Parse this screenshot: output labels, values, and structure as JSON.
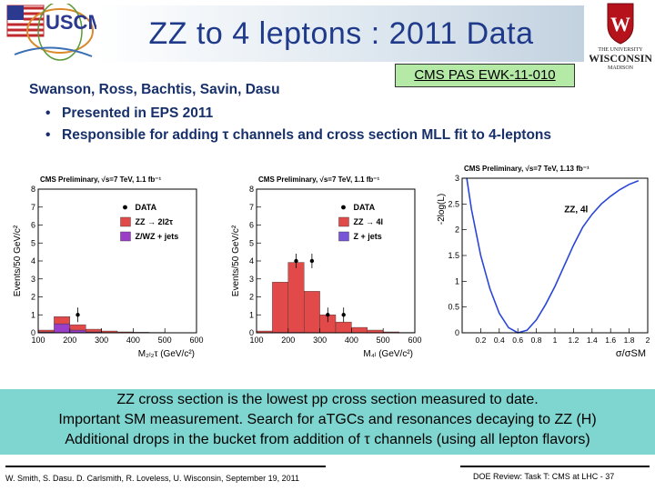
{
  "header": {
    "title": "ZZ to 4 leptons : 2011 Data",
    "pas_ref": "CMS PAS EWK-11-010",
    "logo_left": "USCMS",
    "logo_right_top": "THE UNIVERSITY",
    "logo_right_main": "WISCONSIN",
    "logo_right_bottom": "MADISON"
  },
  "content": {
    "authors": "Swanson, Ross, Bachtis, Savin, Dasu",
    "bullets": [
      "Presented in EPS 2011",
      "Responsible for adding τ channels and cross section MLL fit to 4-leptons"
    ]
  },
  "chart_data": [
    {
      "type": "bar",
      "title": "CMS Preliminary, √s=7 TeV, 1.1 fb⁻¹",
      "xlabel": "M₂ₗ₂τ (GeV/c²)",
      "ylabel": "Events/50 GeV/c²",
      "xlim": [
        100,
        600
      ],
      "ylim": [
        0,
        8
      ],
      "x_ticks": [
        "100",
        "200",
        "300",
        "400",
        "500",
        "600"
      ],
      "y_ticks": [
        "0",
        "1",
        "2",
        "3",
        "4",
        "5",
        "6",
        "7",
        "8"
      ],
      "legend": [
        "DATA",
        "ZZ → 2l2τ",
        "Z/WZ + jets"
      ],
      "legend_placement": "top-right",
      "bin_edges": [
        100,
        150,
        200,
        250,
        300,
        350,
        400,
        450,
        500,
        550,
        600
      ],
      "series": [
        {
          "name": "Z/WZ + jets",
          "values": [
            0.05,
            0.5,
            0.15,
            0.05,
            0.02,
            0,
            0,
            0,
            0,
            0
          ]
        },
        {
          "name": "ZZ → 2l2τ",
          "values": [
            0.1,
            0.4,
            0.3,
            0.15,
            0.08,
            0.05,
            0.03,
            0.02,
            0.01,
            0.01
          ]
        }
      ],
      "data_points": [
        {
          "x": 225,
          "y": 1
        }
      ],
      "colors": {
        "Z/WZ + jets": "#9b3fc8",
        "ZZ → 2l2τ": "#e24a4a",
        "DATA": "#000000"
      }
    },
    {
      "type": "bar",
      "title": "CMS Preliminary, √s=7 TeV, 1.1 fb⁻¹",
      "xlabel": "M₄ₗ (GeV/c²)",
      "ylabel": "Events/50 GeV/c²",
      "xlim": [
        100,
        600
      ],
      "ylim": [
        0,
        8
      ],
      "x_ticks": [
        "100",
        "200",
        "300",
        "400",
        "500",
        "600"
      ],
      "y_ticks": [
        "0",
        "1",
        "2",
        "3",
        "4",
        "5",
        "6",
        "7",
        "8"
      ],
      "legend": [
        "DATA",
        "ZZ → 4l",
        "Z + jets"
      ],
      "legend_placement": "top-right",
      "bin_edges": [
        100,
        150,
        200,
        250,
        300,
        350,
        400,
        450,
        500,
        550,
        600
      ],
      "series": [
        {
          "name": "Z + jets",
          "values": [
            0,
            0.02,
            0.02,
            0.01,
            0,
            0,
            0,
            0,
            0,
            0
          ]
        },
        {
          "name": "ZZ → 4l",
          "values": [
            0.1,
            2.8,
            3.9,
            2.3,
            1.0,
            0.6,
            0.3,
            0.15,
            0.05,
            0.02
          ]
        }
      ],
      "data_points": [
        {
          "x": 225,
          "y": 4
        },
        {
          "x": 275,
          "y": 4
        },
        {
          "x": 325,
          "y": 1
        },
        {
          "x": 375,
          "y": 1
        }
      ],
      "colors": {
        "Z + jets": "#7755d6",
        "ZZ → 4l": "#e24a4a",
        "DATA": "#000000"
      }
    },
    {
      "type": "line",
      "title": "CMS Preliminary, √s=7 TeV, 1.13 fb⁻¹",
      "annotation": "ZZ, 4l",
      "xlabel": "σ/σSM",
      "ylabel": "-2log(L)",
      "xlim": [
        0,
        2
      ],
      "ylim": [
        0,
        3
      ],
      "x_ticks": [
        "0.2",
        "0.4",
        "0.6",
        "0.8",
        "1",
        "1.2",
        "1.4",
        "1.6",
        "1.8",
        "2"
      ],
      "y_ticks": [
        "0",
        "0.5",
        "1",
        "1.5",
        "2",
        "2.5",
        "3"
      ],
      "x": [
        0.05,
        0.1,
        0.2,
        0.3,
        0.4,
        0.5,
        0.6,
        0.7,
        0.8,
        0.9,
        1.0,
        1.1,
        1.2,
        1.3,
        1.4,
        1.5,
        1.6,
        1.7,
        1.8,
        1.9
      ],
      "values": [
        3.0,
        2.4,
        1.5,
        0.85,
        0.38,
        0.1,
        0.0,
        0.05,
        0.25,
        0.55,
        0.9,
        1.3,
        1.7,
        2.05,
        2.3,
        2.5,
        2.65,
        2.78,
        2.88,
        2.95
      ],
      "color": "#2a46d8"
    }
  ],
  "summary": {
    "lines": [
      "ZZ cross section is the lowest pp cross section measured to date.",
      "Important SM measurement. Search for aTGCs and resonances decaying to ZZ (H)",
      "Additional drops in the bucket from addition of τ channels (using all lepton flavors)"
    ]
  },
  "footer": {
    "left": "W. Smith, S. Dasu. D. Carlsmith, R. Loveless, U. Wisconsin, September 19, 2011",
    "right": "DOE Review: Task T: CMS at LHC -  37"
  }
}
